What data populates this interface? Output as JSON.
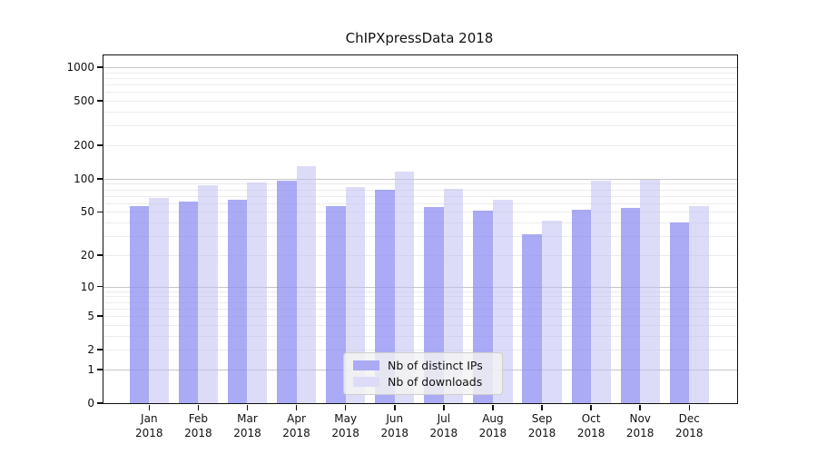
{
  "chart_data": {
    "type": "bar",
    "title": "ChIPXpressData 2018",
    "xlabel": "",
    "ylabel": "",
    "y_scale": "log(1+x)",
    "ylim": [
      0,
      1280
    ],
    "y_ticks": [
      0,
      1,
      2,
      5,
      10,
      20,
      50,
      100,
      200,
      500,
      1000
    ],
    "grid": "horizontal major (decades) + minor (log subdivisions)",
    "legend_position": "bottom-center inside plot",
    "categories": [
      "Jan",
      "Feb",
      "Mar",
      "Apr",
      "May",
      "Jun",
      "Jul",
      "Aug",
      "Sep",
      "Oct",
      "Nov",
      "Dec"
    ],
    "year": "2018",
    "series": [
      {
        "name": "Nb of distinct IPs",
        "color": "#aaaaf5",
        "values": [
          57,
          62,
          65,
          96,
          57,
          79,
          56,
          51,
          31,
          52,
          54,
          40
        ]
      },
      {
        "name": "Nb of downloads",
        "color": "#dcdcf8",
        "values": [
          67,
          88,
          92,
          130,
          84,
          116,
          81,
          65,
          42,
          96,
          98,
          57
        ]
      }
    ]
  },
  "colors": {
    "major_grid": "#c6c6c6",
    "minor_grid": "#ececec",
    "axis": "#111111",
    "legend_background": "#f3f3f3",
    "legend_border": "#cfcfcf"
  }
}
